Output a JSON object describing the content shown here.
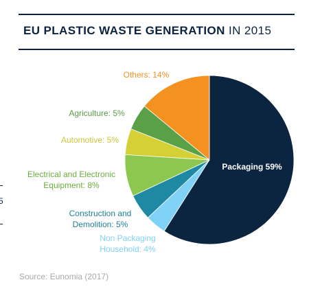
{
  "title_bold": "EU PLASTIC WASTE GENERATION",
  "title_light": "IN 2015",
  "source": "Source: Eunomia (2017)",
  "colors": {
    "rule": "#0b2340",
    "title": "#0b2340",
    "source": "#a7a9ac"
  },
  "chart_data": {
    "type": "pie",
    "title": "EU PLASTIC WASTE GENERATION IN 2015",
    "start_angle_deg": 0,
    "direction": "clockwise",
    "slices": [
      {
        "label_lines": [
          "Packaging 59%"
        ],
        "value": 59,
        "color": "#0b2440",
        "label_color": "#ffffff"
      },
      {
        "label_lines": [
          "Non Packaging",
          "Household: 4%"
        ],
        "value": 4,
        "color": "#7fd2f5",
        "label_color": "#7fd2f5"
      },
      {
        "label_lines": [
          "Construction and",
          "Demolition: 5%"
        ],
        "value": 5,
        "color": "#1f89a3",
        "label_color": "#1f7f99"
      },
      {
        "label_lines": [
          "Electrical and Electronic",
          "Equipment: 8%"
        ],
        "value": 8,
        "color": "#8cc850",
        "label_color": "#6cab3c"
      },
      {
        "label_lines": [
          "Automotive: 5%"
        ],
        "value": 5,
        "color": "#d6d037",
        "label_color": "#cbc33a"
      },
      {
        "label_lines": [
          "Agriculture: 5%"
        ],
        "value": 5,
        "color": "#5aa046",
        "label_color": "#5a9a46"
      },
      {
        "label_lines": [
          "Others: 14%"
        ],
        "value": 14,
        "color": "#f39221",
        "label_color": "#f39221"
      }
    ]
  }
}
